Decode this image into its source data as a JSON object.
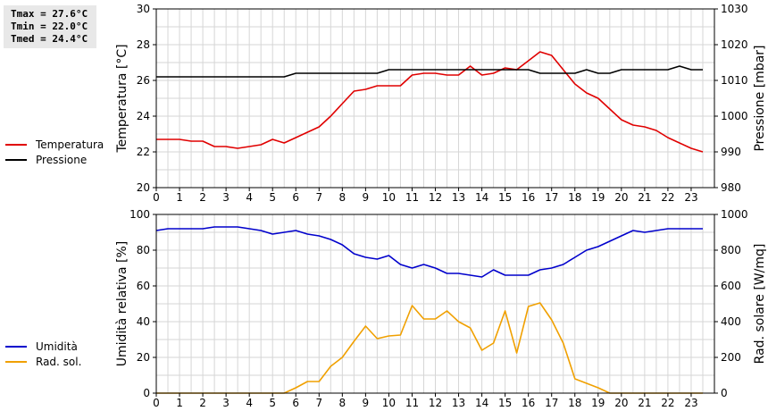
{
  "stats": {
    "tmax": "Tmax = 27.6°C",
    "tmin": "Tmin = 22.0°C",
    "tmed": "Tmed = 24.4°C"
  },
  "chart_data": [
    {
      "type": "line",
      "xlim": [
        0,
        24
      ],
      "x_ticks": [
        "0",
        "1",
        "2",
        "3",
        "4",
        "5",
        "6",
        "7",
        "8",
        "9",
        "10",
        "11",
        "12",
        "13",
        "14",
        "15",
        "16",
        "17",
        "18",
        "19",
        "20",
        "21",
        "22",
        "23"
      ],
      "ylabel": "Temperatura [°C]",
      "ylim": [
        20,
        30
      ],
      "y_ticks": [
        "20",
        "22",
        "24",
        "26",
        "28",
        "30"
      ],
      "y2label": "Pressione [mbar]",
      "y2lim": [
        980,
        1030
      ],
      "y2_ticks": [
        "980",
        "990",
        "1000",
        "1010",
        "1020",
        "1030"
      ],
      "grid": true,
      "legend_position": "left",
      "series": [
        {
          "name": "Temperatura",
          "axis": "left",
          "color": "#e00000",
          "x": [
            0,
            0.5,
            1,
            1.5,
            2,
            2.5,
            3,
            3.5,
            4,
            4.5,
            5,
            5.5,
            6,
            6.5,
            7,
            7.5,
            8,
            8.5,
            9,
            9.5,
            10,
            10.5,
            11,
            11.5,
            12,
            12.5,
            13,
            13.5,
            14,
            14.5,
            15,
            15.5,
            16,
            16.5,
            17,
            17.5,
            18,
            18.5,
            19,
            19.5,
            20,
            20.5,
            21,
            21.5,
            22,
            22.5,
            23,
            23.5
          ],
          "values": [
            22.7,
            22.7,
            22.7,
            22.6,
            22.6,
            22.3,
            22.3,
            22.2,
            22.3,
            22.4,
            22.7,
            22.5,
            22.8,
            23.1,
            23.4,
            24.0,
            24.7,
            25.4,
            25.5,
            25.7,
            25.7,
            25.7,
            26.3,
            26.4,
            26.4,
            26.3,
            26.3,
            26.8,
            26.3,
            26.4,
            26.7,
            26.6,
            27.1,
            27.6,
            27.4,
            26.6,
            25.8,
            25.3,
            25.0,
            24.4,
            23.8,
            23.5,
            23.4,
            23.2,
            22.8,
            22.5,
            22.2,
            22.0
          ]
        },
        {
          "name": "Pressione",
          "axis": "right",
          "color": "#000000",
          "x": [
            0,
            0.5,
            1,
            1.5,
            2,
            2.5,
            3,
            3.5,
            4,
            4.5,
            5,
            5.5,
            6,
            6.5,
            7,
            7.5,
            8,
            8.5,
            9,
            9.5,
            10,
            10.5,
            11,
            11.5,
            12,
            12.5,
            13,
            13.5,
            14,
            14.5,
            15,
            15.5,
            16,
            16.5,
            17,
            17.5,
            18,
            18.5,
            19,
            19.5,
            20,
            20.5,
            21,
            21.5,
            22,
            22.5,
            23,
            23.5
          ],
          "values": [
            1011,
            1011,
            1011,
            1011,
            1011,
            1011,
            1011,
            1011,
            1011,
            1011,
            1011,
            1011,
            1012,
            1012,
            1012,
            1012,
            1012,
            1012,
            1012,
            1012,
            1013,
            1013,
            1013,
            1013,
            1013,
            1013,
            1013,
            1013,
            1013,
            1013,
            1013,
            1013,
            1013,
            1012,
            1012,
            1012,
            1012,
            1013,
            1012,
            1012,
            1013,
            1013,
            1013,
            1013,
            1013,
            1014,
            1013,
            1013
          ]
        }
      ]
    },
    {
      "type": "line",
      "xlim": [
        0,
        24
      ],
      "x_ticks": [
        "0",
        "1",
        "2",
        "3",
        "4",
        "5",
        "6",
        "7",
        "8",
        "9",
        "10",
        "11",
        "12",
        "13",
        "14",
        "15",
        "16",
        "17",
        "18",
        "19",
        "20",
        "21",
        "22",
        "23"
      ],
      "ylabel": "Umidità relativa [%]",
      "ylim": [
        0,
        100
      ],
      "y_ticks": [
        "0",
        "20",
        "40",
        "60",
        "80",
        "100"
      ],
      "y2label": "Rad. solare [W/mq]",
      "y2lim": [
        0,
        1000
      ],
      "y2_ticks": [
        "0",
        "200",
        "400",
        "600",
        "800",
        "1000"
      ],
      "grid": true,
      "legend_position": "left",
      "series": [
        {
          "name": "Umidità",
          "axis": "left",
          "color": "#0000cc",
          "x": [
            0,
            0.5,
            1,
            1.5,
            2,
            2.5,
            3,
            3.5,
            4,
            4.5,
            5,
            5.5,
            6,
            6.5,
            7,
            7.5,
            8,
            8.5,
            9,
            9.5,
            10,
            10.5,
            11,
            11.5,
            12,
            12.5,
            13,
            13.5,
            14,
            14.5,
            15,
            15.5,
            16,
            16.5,
            17,
            17.5,
            18,
            18.5,
            19,
            19.5,
            20,
            20.5,
            21,
            21.5,
            22,
            22.5,
            23,
            23.5
          ],
          "values": [
            91,
            92,
            92,
            92,
            92,
            93,
            93,
            93,
            92,
            91,
            89,
            90,
            91,
            89,
            88,
            86,
            83,
            78,
            76,
            75,
            77,
            72,
            70,
            72,
            70,
            67,
            67,
            66,
            65,
            69,
            66,
            66,
            66,
            69,
            70,
            72,
            76,
            80,
            82,
            85,
            88,
            91,
            90,
            91,
            92,
            92,
            92,
            92
          ]
        },
        {
          "name": "Rad. sol.",
          "axis": "right",
          "color": "#f0a000",
          "x": [
            0,
            0.5,
            1,
            1.5,
            2,
            2.5,
            3,
            3.5,
            4,
            4.5,
            5,
            5.5,
            6,
            6.5,
            7,
            7.5,
            8,
            8.5,
            9,
            9.5,
            10,
            10.5,
            11,
            11.5,
            12,
            12.5,
            13,
            13.5,
            14,
            14.5,
            15,
            15.5,
            16,
            16.5,
            17,
            17.5,
            18,
            18.5,
            19,
            19.5,
            20,
            20.5,
            21,
            21.5,
            22,
            22.5,
            23,
            23.5
          ],
          "values": [
            0,
            0,
            0,
            0,
            0,
            0,
            0,
            0,
            0,
            0,
            0,
            0,
            30,
            65,
            65,
            150,
            200,
            290,
            375,
            305,
            320,
            325,
            490,
            415,
            415,
            460,
            400,
            365,
            240,
            280,
            460,
            225,
            485,
            505,
            410,
            280,
            80,
            55,
            30,
            0,
            0,
            0,
            0,
            0,
            0,
            0,
            0,
            0
          ]
        }
      ]
    }
  ]
}
